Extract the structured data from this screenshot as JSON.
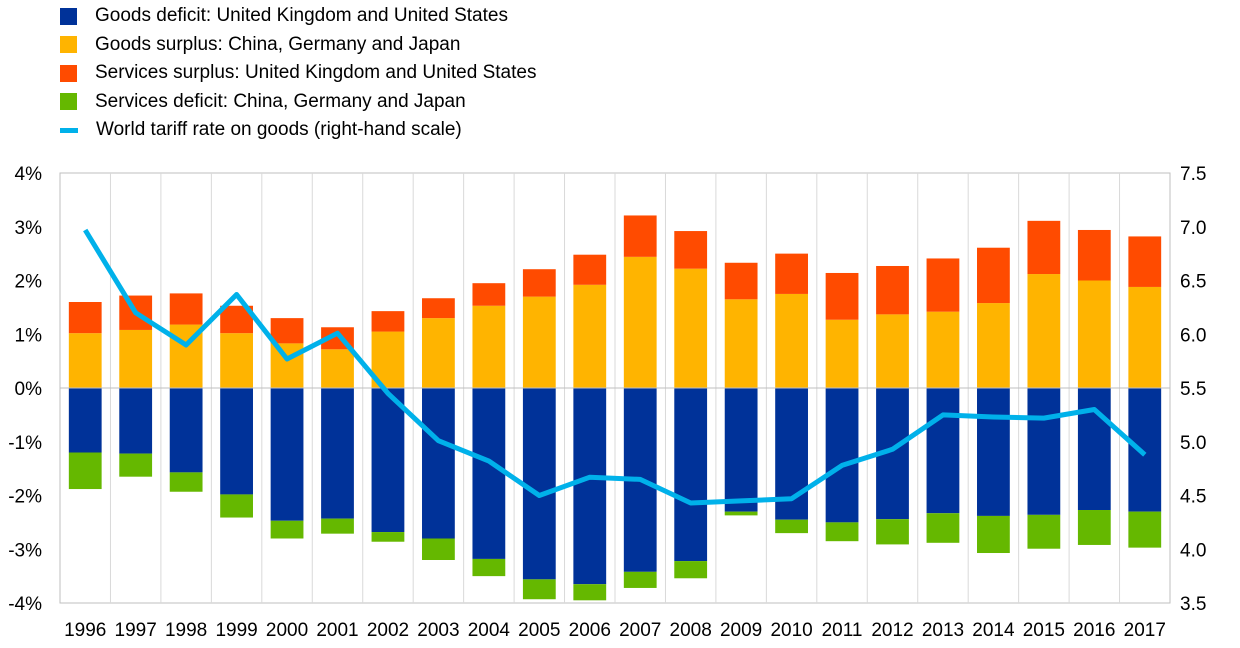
{
  "chart_data": {
    "type": "bar",
    "categories": [
      "1996",
      "1997",
      "1998",
      "1999",
      "2000",
      "2001",
      "2002",
      "2003",
      "2004",
      "2005",
      "2006",
      "2007",
      "2008",
      "2009",
      "2010",
      "2011",
      "2012",
      "2013",
      "2014",
      "2015",
      "2016",
      "2017"
    ],
    "series": [
      {
        "name": "Goods deficit: United Kingdom and United States",
        "color": "#003299",
        "values": [
          -1.2,
          -1.22,
          -1.57,
          -1.98,
          -2.47,
          -2.43,
          -2.68,
          -2.8,
          -3.18,
          -3.56,
          -3.65,
          -3.42,
          -3.22,
          -2.3,
          -2.45,
          -2.5,
          -2.44,
          -2.33,
          -2.38,
          -2.36,
          -2.27,
          -2.3
        ]
      },
      {
        "name": "Goods surplus: China, Germany and Japan",
        "color": "#FFB400",
        "values": [
          1.02,
          1.08,
          1.18,
          1.02,
          0.83,
          0.72,
          1.05,
          1.3,
          1.53,
          1.7,
          1.92,
          2.44,
          2.22,
          1.65,
          1.75,
          1.27,
          1.37,
          1.42,
          1.58,
          2.12,
          2.0,
          1.88
        ]
      },
      {
        "name": "Services surplus: United Kingdom and United States",
        "color": "#FF4B00",
        "values": [
          0.58,
          0.64,
          0.58,
          0.51,
          0.47,
          0.41,
          0.38,
          0.37,
          0.42,
          0.51,
          0.56,
          0.77,
          0.7,
          0.68,
          0.75,
          0.87,
          0.9,
          0.99,
          1.03,
          0.99,
          0.94,
          0.94
        ]
      },
      {
        "name": "Services deficit: China, Germany and Japan",
        "color": "#65B800",
        "values": [
          -0.68,
          -0.43,
          -0.36,
          -0.43,
          -0.33,
          -0.28,
          -0.18,
          -0.4,
          -0.32,
          -0.37,
          -0.3,
          -0.3,
          -0.32,
          -0.07,
          -0.25,
          -0.35,
          -0.47,
          -0.55,
          -0.69,
          -0.63,
          -0.65,
          -0.67
        ]
      }
    ],
    "line": {
      "name": "World tariff rate on goods (right-hand scale)",
      "color": "#00B1EA",
      "values": [
        6.97,
        6.2,
        5.9,
        6.37,
        5.77,
        6.01,
        5.45,
        5.01,
        4.82,
        4.5,
        4.67,
        4.65,
        4.43,
        4.45,
        4.47,
        4.78,
        4.93,
        5.25,
        5.23,
        5.22,
        5.3,
        4.88
      ]
    },
    "y_left": {
      "min": -4,
      "max": 4,
      "ticks": [
        "-4%",
        "-3%",
        "-2%",
        "-1%",
        "0%",
        "1%",
        "2%",
        "3%",
        "4%"
      ]
    },
    "y_right": {
      "min": 3.5,
      "max": 7.5,
      "ticks": [
        "3.5",
        "4.0",
        "4.5",
        "5.0",
        "5.5",
        "6.0",
        "6.5",
        "7.0",
        "7.5"
      ]
    },
    "legend_position": "top-left"
  }
}
